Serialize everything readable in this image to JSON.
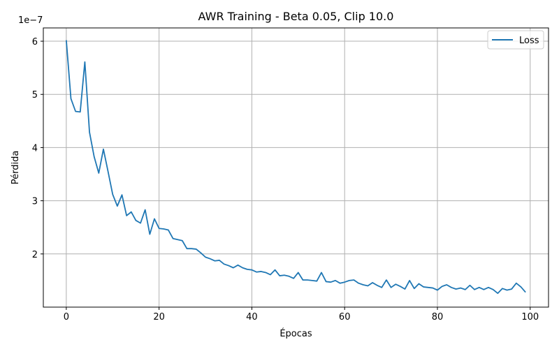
{
  "chart_data": {
    "type": "line",
    "title": "AWR Training - Beta 0.05, Clip 10.0",
    "xlabel": "Épocas",
    "ylabel": "Pérdida",
    "scale_label": "1e−7",
    "xlim": [
      -4.95,
      103.95
    ],
    "ylim": [
      1e-07,
      6.25e-07
    ],
    "xticks": [
      0,
      20,
      40,
      60,
      80,
      100
    ],
    "yticks": [
      2e-07,
      3e-07,
      4e-07,
      5e-07,
      6e-07
    ],
    "ytick_labels": [
      "2",
      "3",
      "4",
      "5",
      "6"
    ],
    "grid": true,
    "legend": "top-right",
    "color": "#1f77b4",
    "series": [
      {
        "name": "Loss",
        "x": [
          0,
          1,
          2,
          3,
          4,
          5,
          6,
          7,
          8,
          9,
          10,
          11,
          12,
          13,
          14,
          15,
          16,
          17,
          18,
          19,
          20,
          21,
          22,
          23,
          24,
          25,
          26,
          27,
          28,
          29,
          30,
          31,
          32,
          33,
          34,
          35,
          36,
          37,
          38,
          39,
          40,
          41,
          42,
          43,
          44,
          45,
          46,
          47,
          48,
          49,
          50,
          51,
          52,
          53,
          54,
          55,
          56,
          57,
          58,
          59,
          60,
          61,
          62,
          63,
          64,
          65,
          66,
          67,
          68,
          69,
          70,
          71,
          72,
          73,
          74,
          75,
          76,
          77,
          78,
          79,
          80,
          81,
          82,
          83,
          84,
          85,
          86,
          87,
          88,
          89,
          90,
          91,
          92,
          93,
          94,
          95,
          96,
          97,
          98,
          99
        ],
        "values": [
          6.02e-07,
          4.92e-07,
          4.68e-07,
          4.67e-07,
          5.61e-07,
          4.29e-07,
          3.83e-07,
          3.52e-07,
          3.97e-07,
          3.55e-07,
          3.12e-07,
          2.9e-07,
          3.11e-07,
          2.72e-07,
          2.79e-07,
          2.63e-07,
          2.58e-07,
          2.83e-07,
          2.37e-07,
          2.66e-07,
          2.48e-07,
          2.47e-07,
          2.45e-07,
          2.29e-07,
          2.27e-07,
          2.25e-07,
          2.1e-07,
          2.1e-07,
          2.09e-07,
          2.02e-07,
          1.94e-07,
          1.91e-07,
          1.87e-07,
          1.88e-07,
          1.81e-07,
          1.78e-07,
          1.74e-07,
          1.79e-07,
          1.74e-07,
          1.71e-07,
          1.7e-07,
          1.66e-07,
          1.67e-07,
          1.65e-07,
          1.61e-07,
          1.7e-07,
          1.59e-07,
          1.6e-07,
          1.58e-07,
          1.54e-07,
          1.65e-07,
          1.51e-07,
          1.51e-07,
          1.5e-07,
          1.49e-07,
          1.65e-07,
          1.48e-07,
          1.47e-07,
          1.5e-07,
          1.45e-07,
          1.47e-07,
          1.5e-07,
          1.51e-07,
          1.45e-07,
          1.42e-07,
          1.4e-07,
          1.46e-07,
          1.41e-07,
          1.37e-07,
          1.51e-07,
          1.37e-07,
          1.43e-07,
          1.39e-07,
          1.34e-07,
          1.5e-07,
          1.35e-07,
          1.44e-07,
          1.38e-07,
          1.37e-07,
          1.36e-07,
          1.32e-07,
          1.39e-07,
          1.42e-07,
          1.37e-07,
          1.34e-07,
          1.36e-07,
          1.33e-07,
          1.41e-07,
          1.33e-07,
          1.37e-07,
          1.33e-07,
          1.37e-07,
          1.33e-07,
          1.26e-07,
          1.35e-07,
          1.32e-07,
          1.34e-07,
          1.45e-07,
          1.38e-07,
          1.28e-07
        ]
      }
    ]
  }
}
